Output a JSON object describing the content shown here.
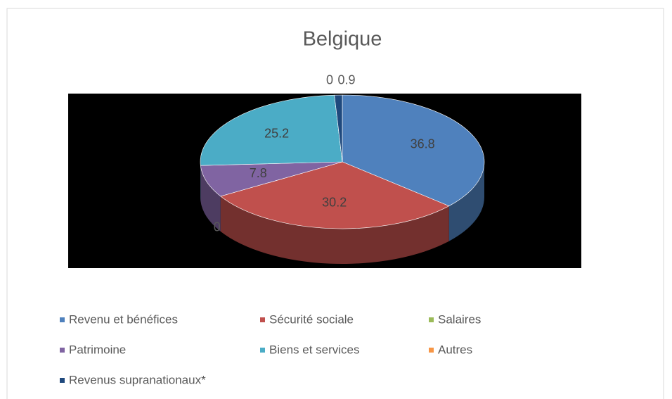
{
  "chart_data": {
    "type": "pie3d",
    "title": "Belgique",
    "categories": [
      "Revenu et bénéfices",
      "Sécurité sociale",
      "Salaires",
      "Patrimoine",
      "Biens et services",
      "Autres",
      "Revenus supranationaux*"
    ],
    "values": [
      36.8,
      30.2,
      0,
      7.8,
      25.2,
      0,
      0.9
    ],
    "colors": [
      "#4f81bd",
      "#c0504d",
      "#9bbb59",
      "#8064a2",
      "#4bacc6",
      "#f79646",
      "#1f497d"
    ],
    "legend": "bottom"
  }
}
